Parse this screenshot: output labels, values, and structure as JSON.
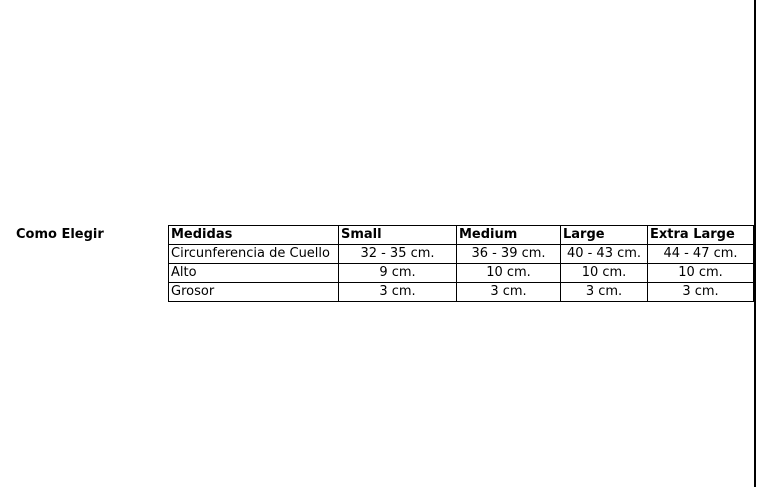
{
  "section_label": "Como Elegir",
  "table": {
    "headers": [
      "Medidas",
      "Small",
      "Medium",
      "Large",
      "Extra Large"
    ],
    "rows": [
      [
        "Circunferencia de Cuello",
        "32 - 35 cm.",
        "36 - 39 cm.",
        "40 - 43 cm.",
        "44 - 47 cm."
      ],
      [
        "Alto",
        "9 cm.",
        "10 cm.",
        "10 cm.",
        "10 cm."
      ],
      [
        "Grosor",
        "3 cm.",
        "3 cm.",
        "3 cm.",
        "3 cm."
      ]
    ]
  }
}
